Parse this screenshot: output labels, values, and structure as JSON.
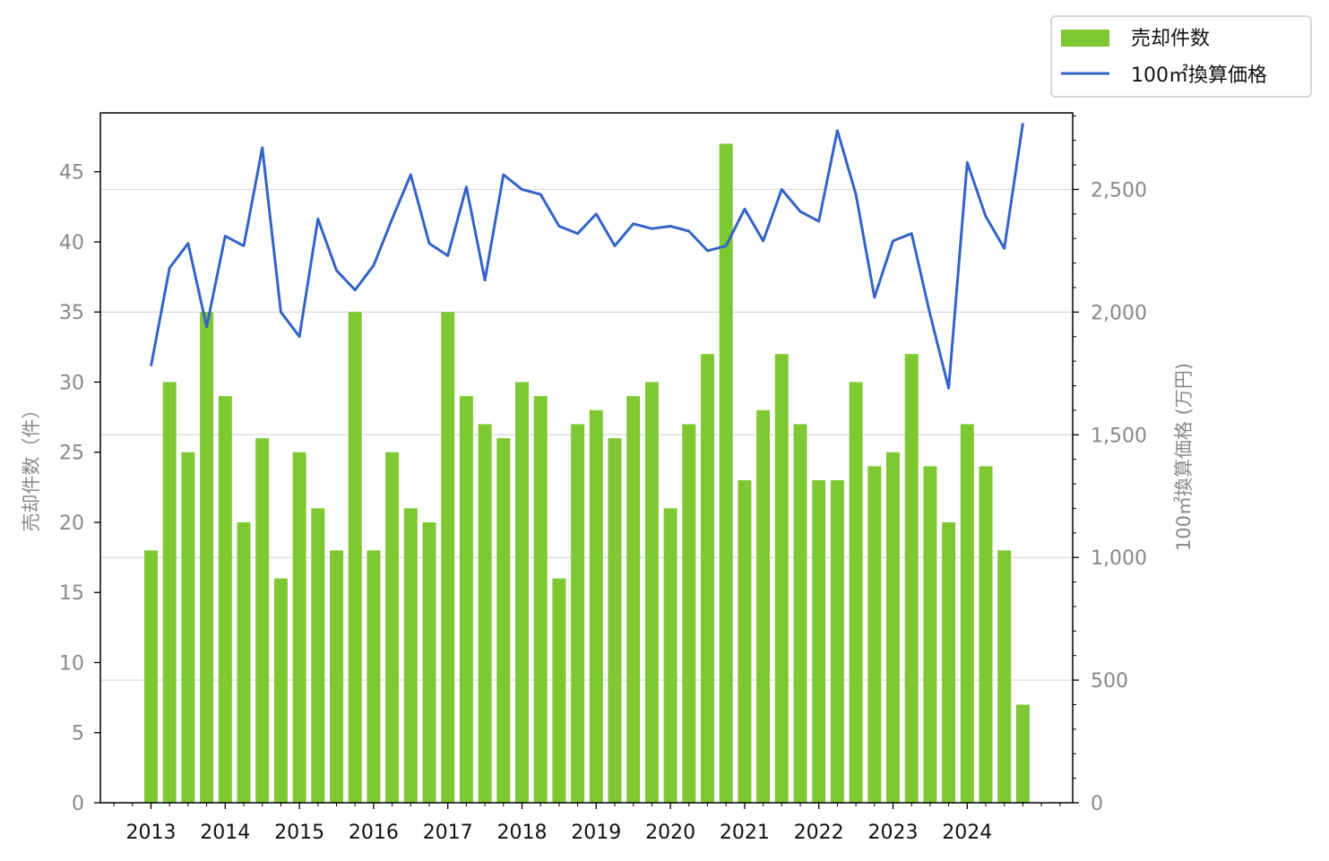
{
  "chart_data": {
    "type": "bar",
    "x": [
      "2013Q1",
      "2013Q2",
      "2013Q3",
      "2013Q4",
      "2014Q1",
      "2014Q2",
      "2014Q3",
      "2014Q4",
      "2015Q1",
      "2015Q2",
      "2015Q3",
      "2015Q4",
      "2016Q1",
      "2016Q2",
      "2016Q3",
      "2016Q4",
      "2017Q1",
      "2017Q2",
      "2017Q3",
      "2017Q4",
      "2018Q1",
      "2018Q2",
      "2018Q3",
      "2018Q4",
      "2019Q1",
      "2019Q2",
      "2019Q3",
      "2019Q4",
      "2020Q1",
      "2020Q2",
      "2020Q3",
      "2020Q4",
      "2021Q1",
      "2021Q2",
      "2021Q3",
      "2021Q4",
      "2022Q1",
      "2022Q2",
      "2022Q3",
      "2022Q4",
      "2023Q1",
      "2023Q2",
      "2023Q3",
      "2023Q4",
      "2024Q1",
      "2024Q2",
      "2024Q3",
      "2024Q4"
    ],
    "x_tick_labels": [
      "2013",
      "2014",
      "2015",
      "2016",
      "2017",
      "2018",
      "2019",
      "2020",
      "2021",
      "2022",
      "2023",
      "2024"
    ],
    "series": [
      {
        "name": "売却件数",
        "type": "bar",
        "axis": "left",
        "color": "#7ec832",
        "values": [
          18,
          30,
          25,
          35,
          29,
          20,
          26,
          16,
          25,
          21,
          18,
          35,
          18,
          25,
          21,
          20,
          35,
          29,
          27,
          26,
          30,
          29,
          16,
          27,
          28,
          26,
          29,
          30,
          21,
          27,
          32,
          47,
          23,
          28,
          32,
          27,
          23,
          23,
          30,
          24,
          25,
          32,
          24,
          20,
          27,
          24,
          18,
          7
        ]
      },
      {
        "name": "100㎡換算価格",
        "type": "line",
        "axis": "right",
        "color": "#3463c8",
        "values": [
          1780,
          2180,
          2280,
          1940,
          2310,
          2270,
          2670,
          2000,
          1900,
          2380,
          2170,
          2090,
          2190,
          2380,
          2560,
          2280,
          2230,
          2510,
          2130,
          2560,
          2500,
          2480,
          2350,
          2320,
          2400,
          2270,
          2360,
          2340,
          2350,
          2330,
          2250,
          2270,
          2420,
          2290,
          2500,
          2410,
          2370,
          2740,
          2480,
          2060,
          2290,
          2320,
          1990,
          1690,
          2610,
          2390,
          2260,
          2770
        ]
      }
    ],
    "ylabel_left": "売却件数（件）",
    "ylabel_right": "100㎡換算価格 (万円)",
    "ylim_left": [
      0,
      49.2
    ],
    "ylim_right": [
      0,
      2812
    ],
    "yticks_left": [
      "0",
      "5",
      "10",
      "15",
      "20",
      "25",
      "30",
      "35",
      "40",
      "45"
    ],
    "yticks_right": [
      "0",
      "500",
      "1,000",
      "1,500",
      "2,000",
      "2,500"
    ],
    "grid": "horizontal (right axis)",
    "legend": "top-right, outside plot"
  }
}
